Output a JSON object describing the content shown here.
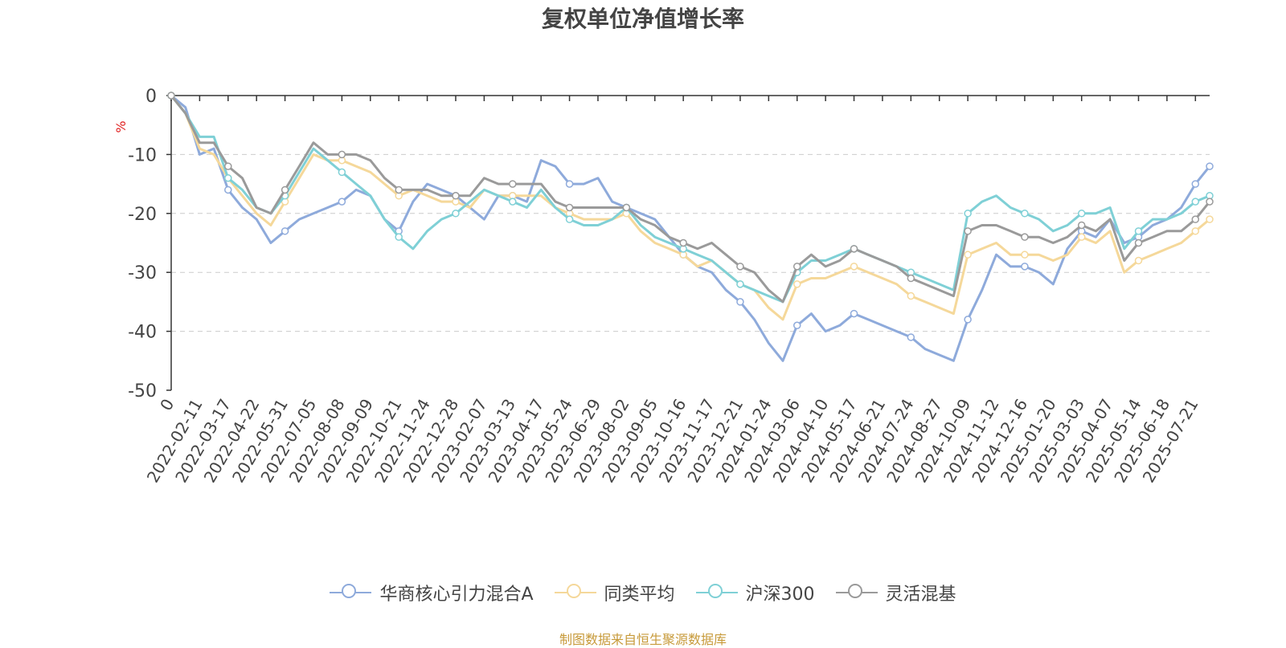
{
  "source_note": "制图数据来自恒生聚源数据库",
  "chart_data": {
    "type": "line",
    "title": "复权单位净值增长率",
    "ylabel": "%",
    "ylim": [
      -50,
      0
    ],
    "yticks": [
      0,
      -10,
      -20,
      -30,
      -40,
      -50
    ],
    "grid": true,
    "legend_position": "bottom",
    "x_tick_labels": [
      "0",
      "2022-02-11",
      "2022-03-17",
      "2022-04-22",
      "2022-05-31",
      "2022-07-05",
      "2022-08-08",
      "2022-09-09",
      "2022-10-21",
      "2022-11-24",
      "2022-12-28",
      "2023-02-07",
      "2023-03-13",
      "2023-04-17",
      "2023-05-24",
      "2023-06-29",
      "2023-08-02",
      "2023-09-05",
      "2023-10-16",
      "2023-11-17",
      "2023-12-21",
      "2024-01-24",
      "2024-03-06",
      "2024-04-10",
      "2024-05-17",
      "2024-06-21",
      "2024-07-24",
      "2024-08-27",
      "2024-10-09",
      "2024-11-12",
      "2024-12-16",
      "2025-01-20",
      "2025-03-03",
      "2025-04-07",
      "2025-05-14",
      "2025-06-18",
      "2025-07-21"
    ],
    "x": [
      "0",
      "2022-01-28",
      "2022-02-11",
      "2022-02-28",
      "2022-03-17",
      "2022-04-05",
      "2022-04-22",
      "2022-05-10",
      "2022-05-31",
      "2022-06-17",
      "2022-07-05",
      "2022-07-20",
      "2022-08-08",
      "2022-08-24",
      "2022-09-09",
      "2022-09-28",
      "2022-10-21",
      "2022-11-07",
      "2022-11-24",
      "2022-12-12",
      "2022-12-28",
      "2023-01-16",
      "2023-02-07",
      "2023-02-24",
      "2023-03-13",
      "2023-03-30",
      "2023-04-17",
      "2023-05-06",
      "2023-05-24",
      "2023-06-12",
      "2023-06-29",
      "2023-07-17",
      "2023-08-02",
      "2023-08-18",
      "2023-09-05",
      "2023-09-22",
      "2023-10-16",
      "2023-11-01",
      "2023-11-17",
      "2023-12-05",
      "2023-12-21",
      "2024-01-09",
      "2024-01-24",
      "2024-02-08",
      "2024-03-06",
      "2024-03-22",
      "2024-04-10",
      "2024-04-26",
      "2024-05-17",
      "2024-06-04",
      "2024-06-21",
      "2024-07-08",
      "2024-07-24",
      "2024-08-09",
      "2024-08-27",
      "2024-09-13",
      "2024-10-09",
      "2024-10-25",
      "2024-11-12",
      "2024-11-28",
      "2024-12-16",
      "2025-01-03",
      "2025-01-20",
      "2025-02-14",
      "2025-03-03",
      "2025-03-19",
      "2025-04-07",
      "2025-04-24",
      "2025-05-14",
      "2025-05-30",
      "2025-06-18",
      "2025-07-04",
      "2025-07-21",
      "2025-07-25"
    ],
    "series": [
      {
        "name": "华商核心引力混合A",
        "color": "#8eaadb",
        "values": [
          0,
          -2,
          -10,
          -9,
          -16,
          -19,
          -21,
          -25,
          -23,
          -21,
          -20,
          -19,
          -18,
          -16,
          -17,
          -21,
          -23,
          -18,
          -15,
          -16,
          -17,
          -19,
          -21,
          -17,
          -17,
          -18,
          -11,
          -12,
          -15,
          -15,
          -14,
          -18,
          -19,
          -20,
          -21,
          -24,
          -27,
          -29,
          -30,
          -33,
          -35,
          -38,
          -42,
          -45,
          -39,
          -37,
          -40,
          -39,
          -37,
          -38,
          -39,
          -40,
          -41,
          -43,
          -44,
          -45,
          -38,
          -33,
          -27,
          -29,
          -29,
          -30,
          -32,
          -26,
          -23,
          -24,
          -21,
          -25,
          -24,
          -22,
          -21,
          -19,
          -15,
          -12
        ]
      },
      {
        "name": "同类平均",
        "color": "#f5d89a",
        "values": [
          0,
          -3,
          -9,
          -10,
          -14,
          -17,
          -20,
          -22,
          -18,
          -14,
          -10,
          -11,
          -11,
          -12,
          -13,
          -15,
          -17,
          -16,
          -17,
          -18,
          -18,
          -19,
          -16,
          -17,
          -17,
          -17,
          -17,
          -19,
          -20,
          -21,
          -21,
          -21,
          -20,
          -23,
          -25,
          -26,
          -27,
          -29,
          -28,
          -30,
          -32,
          -33,
          -36,
          -38,
          -32,
          -31,
          -31,
          -30,
          -29,
          -30,
          -31,
          -32,
          -34,
          -35,
          -36,
          -37,
          -27,
          -26,
          -25,
          -27,
          -27,
          -27,
          -28,
          -27,
          -24,
          -25,
          -23,
          -30,
          -28,
          -27,
          -26,
          -25,
          -23,
          -21
        ]
      },
      {
        "name": "沪深300",
        "color": "#7fd0d6",
        "values": [
          0,
          -3,
          -7,
          -7,
          -14,
          -16,
          -19,
          -20,
          -17,
          -13,
          -9,
          -11,
          -13,
          -15,
          -17,
          -21,
          -24,
          -26,
          -23,
          -21,
          -20,
          -18,
          -16,
          -17,
          -18,
          -19,
          -16,
          -19,
          -21,
          -22,
          -22,
          -21,
          -19,
          -22,
          -24,
          -25,
          -26,
          -27,
          -28,
          -30,
          -32,
          -33,
          -34,
          -35,
          -30,
          -28,
          -28,
          -27,
          -26,
          -27,
          -28,
          -29,
          -30,
          -31,
          -32,
          -33,
          -20,
          -18,
          -17,
          -19,
          -20,
          -21,
          -23,
          -22,
          -20,
          -20,
          -19,
          -26,
          -23,
          -21,
          -21,
          -20,
          -18,
          -17
        ]
      },
      {
        "name": "灵活混基",
        "color": "#9a9a9a",
        "values": [
          0,
          -3,
          -8,
          -8,
          -12,
          -14,
          -19,
          -20,
          -16,
          -12,
          -8,
          -10,
          -10,
          -10,
          -11,
          -14,
          -16,
          -16,
          -16,
          -17,
          -17,
          -17,
          -14,
          -15,
          -15,
          -15,
          -15,
          -18,
          -19,
          -19,
          -19,
          -19,
          -19,
          -21,
          -22,
          -24,
          -25,
          -26,
          -25,
          -27,
          -29,
          -30,
          -33,
          -35,
          -29,
          -27,
          -29,
          -28,
          -26,
          -27,
          -28,
          -29,
          -31,
          -32,
          -33,
          -34,
          -23,
          -22,
          -22,
          -23,
          -24,
          -24,
          -25,
          -24,
          -22,
          -23,
          -21,
          -28,
          -25,
          -24,
          -23,
          -23,
          -21,
          -18
        ]
      }
    ]
  }
}
